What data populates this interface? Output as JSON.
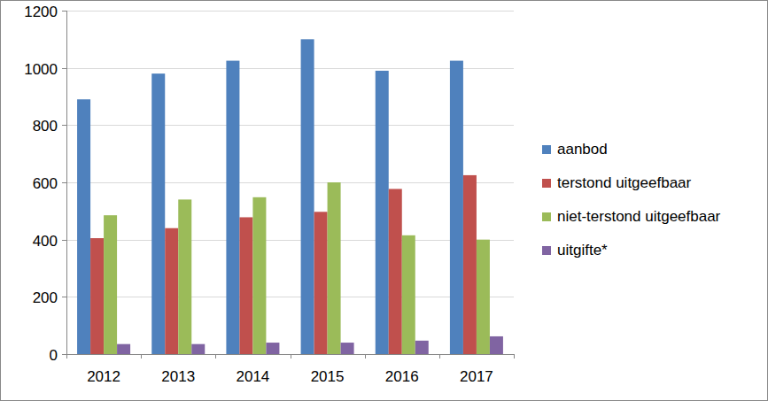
{
  "chart_data": {
    "type": "bar",
    "categories": [
      "2012",
      "2013",
      "2014",
      "2015",
      "2016",
      "2017"
    ],
    "series": [
      {
        "name": "aanbod",
        "color": "#4f81bd",
        "values": [
          890,
          980,
          1025,
          1100,
          990,
          1025
        ]
      },
      {
        "name": "terstond uitgeefbaar",
        "color": "#c0504d",
        "values": [
          405,
          440,
          478,
          497,
          577,
          625
        ]
      },
      {
        "name": "niet-terstond uitgeefbaar",
        "color": "#9bbb59",
        "values": [
          485,
          540,
          548,
          600,
          415,
          400
        ]
      },
      {
        "name": "uitgifte*",
        "color": "#8064a2",
        "values": [
          35,
          35,
          40,
          40,
          47,
          62
        ]
      }
    ],
    "ylim": [
      0,
      1200
    ],
    "yticks": [
      0,
      200,
      400,
      600,
      800,
      1000,
      1200
    ],
    "grid": true,
    "legend": "right"
  }
}
